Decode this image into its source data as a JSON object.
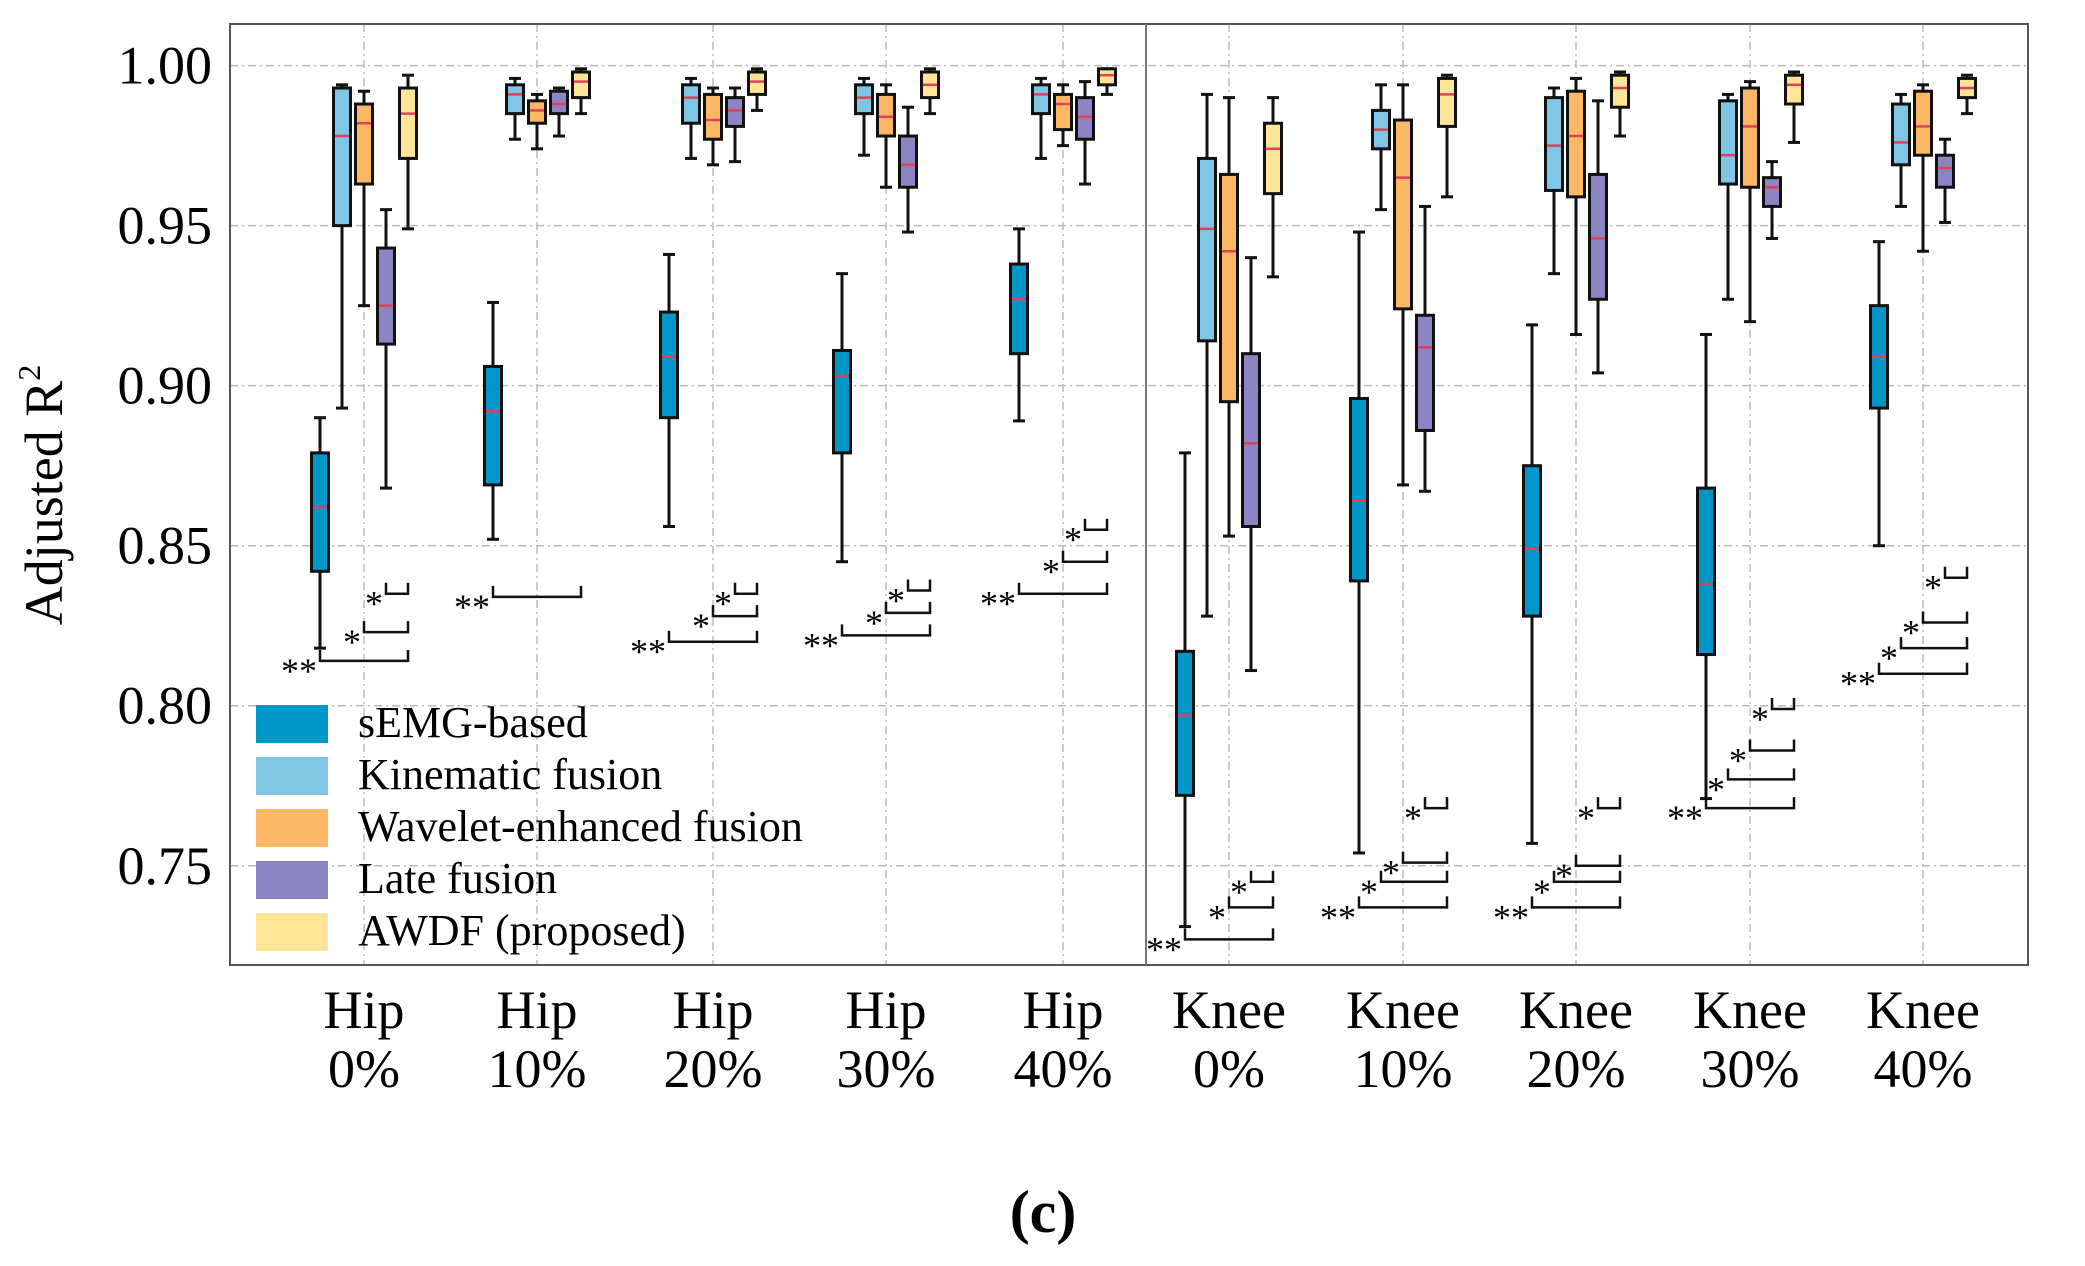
{
  "chart_data": {
    "type": "box",
    "title": "",
    "ylabel": "Adjusted R",
    "ylabel_superscript": "2",
    "ylim": [
      0.719,
      1.013
    ],
    "yticks": [
      "1.00",
      "0.95",
      "0.90",
      "0.85",
      "0.80",
      "0.75"
    ],
    "ytick_values": [
      1.0,
      0.95,
      0.9,
      0.85,
      0.8,
      0.75
    ],
    "grid": true,
    "legend_position": "bottom-left",
    "caption": "(c)",
    "series": [
      {
        "name": "sEMG-based",
        "color": "#0096c8"
      },
      {
        "name": "Kinematic fusion",
        "color": "#7fc6e4"
      },
      {
        "name": "Wavelet-enhanced fusion",
        "color": "#fdb865"
      },
      {
        "name": "Late fusion",
        "color": "#8c85c4"
      },
      {
        "name": "AWDF (proposed)",
        "color": "#fee497"
      }
    ],
    "median_color": "#e0405a",
    "categories": [
      {
        "line1": "Hip",
        "line2": "0%"
      },
      {
        "line1": "Hip",
        "line2": "10%"
      },
      {
        "line1": "Hip",
        "line2": "20%"
      },
      {
        "line1": "Hip",
        "line2": "30%"
      },
      {
        "line1": "Hip",
        "line2": "40%"
      },
      {
        "line1": "Knee",
        "line2": "0%"
      },
      {
        "line1": "Knee",
        "line2": "10%"
      },
      {
        "line1": "Knee",
        "line2": "20%"
      },
      {
        "line1": "Knee",
        "line2": "30%"
      },
      {
        "line1": "Knee",
        "line2": "40%"
      }
    ],
    "boxes_note": "each entry: [min, q1, median, q3, max] per series in order",
    "boxes": [
      [
        [
          0.818,
          0.842,
          0.862,
          0.879,
          0.89
        ],
        [
          0.893,
          0.95,
          0.978,
          0.993,
          0.994
        ],
        [
          0.925,
          0.963,
          0.982,
          0.988,
          0.992
        ],
        [
          0.868,
          0.913,
          0.925,
          0.943,
          0.955
        ],
        [
          0.949,
          0.971,
          0.985,
          0.993,
          0.997
        ]
      ],
      [
        [
          0.852,
          0.869,
          0.892,
          0.906,
          0.926
        ],
        [
          0.977,
          0.985,
          0.991,
          0.994,
          0.996
        ],
        [
          0.974,
          0.982,
          0.986,
          0.989,
          0.991
        ],
        [
          0.978,
          0.985,
          0.988,
          0.992,
          0.993
        ],
        [
          0.985,
          0.99,
          0.995,
          0.998,
          0.999
        ]
      ],
      [
        [
          0.856,
          0.89,
          0.909,
          0.923,
          0.941
        ],
        [
          0.971,
          0.982,
          0.99,
          0.994,
          0.996
        ],
        [
          0.969,
          0.977,
          0.983,
          0.991,
          0.993
        ],
        [
          0.97,
          0.981,
          0.986,
          0.99,
          0.993
        ],
        [
          0.986,
          0.991,
          0.995,
          0.998,
          0.999
        ]
      ],
      [
        [
          0.845,
          0.879,
          0.903,
          0.911,
          0.935
        ],
        [
          0.972,
          0.985,
          0.99,
          0.994,
          0.996
        ],
        [
          0.962,
          0.978,
          0.984,
          0.991,
          0.994
        ],
        [
          0.948,
          0.962,
          0.969,
          0.978,
          0.987
        ],
        [
          0.985,
          0.99,
          0.994,
          0.998,
          0.999
        ]
      ],
      [
        [
          0.889,
          0.91,
          0.927,
          0.938,
          0.949
        ],
        [
          0.971,
          0.985,
          0.991,
          0.994,
          0.996
        ],
        [
          0.975,
          0.98,
          0.988,
          0.991,
          0.994
        ],
        [
          0.963,
          0.977,
          0.984,
          0.99,
          0.995
        ],
        [
          0.991,
          0.994,
          0.997,
          0.999,
          0.999
        ]
      ],
      [
        [
          0.731,
          0.772,
          0.797,
          0.817,
          0.879
        ],
        [
          0.828,
          0.914,
          0.949,
          0.971,
          0.991
        ],
        [
          0.853,
          0.895,
          0.942,
          0.966,
          0.99
        ],
        [
          0.811,
          0.856,
          0.882,
          0.91,
          0.94
        ],
        [
          0.934,
          0.96,
          0.974,
          0.982,
          0.99
        ]
      ],
      [
        [
          0.754,
          0.839,
          0.864,
          0.896,
          0.948
        ],
        [
          0.955,
          0.974,
          0.98,
          0.986,
          0.994
        ],
        [
          0.869,
          0.924,
          0.965,
          0.983,
          0.994
        ],
        [
          0.867,
          0.886,
          0.912,
          0.922,
          0.956
        ],
        [
          0.959,
          0.981,
          0.991,
          0.996,
          0.997
        ]
      ],
      [
        [
          0.757,
          0.828,
          0.849,
          0.875,
          0.919
        ],
        [
          0.935,
          0.961,
          0.975,
          0.99,
          0.993
        ],
        [
          0.916,
          0.959,
          0.978,
          0.992,
          0.996
        ],
        [
          0.904,
          0.927,
          0.946,
          0.966,
          0.989
        ],
        [
          0.978,
          0.987,
          0.993,
          0.997,
          0.998
        ]
      ],
      [
        [
          0.771,
          0.816,
          0.838,
          0.868,
          0.916
        ],
        [
          0.927,
          0.963,
          0.972,
          0.989,
          0.991
        ],
        [
          0.92,
          0.962,
          0.981,
          0.993,
          0.995
        ],
        [
          0.946,
          0.956,
          0.962,
          0.965,
          0.97
        ],
        [
          0.976,
          0.988,
          0.994,
          0.997,
          0.998
        ]
      ],
      [
        [
          0.85,
          0.893,
          0.909,
          0.925,
          0.945
        ],
        [
          0.956,
          0.969,
          0.976,
          0.988,
          0.991
        ],
        [
          0.942,
          0.972,
          0.981,
          0.992,
          0.994
        ],
        [
          0.951,
          0.962,
          0.968,
          0.972,
          0.977
        ],
        [
          0.985,
          0.99,
          0.993,
          0.996,
          0.997
        ]
      ]
    ],
    "significance_note": "each entry: [from_series, to_series, y_value, label]",
    "significance": [
      [
        [
          0,
          4,
          0.814,
          "**"
        ],
        [
          2,
          4,
          0.823,
          "*"
        ],
        [
          3,
          4,
          0.835,
          "*"
        ]
      ],
      [
        [
          0,
          4,
          0.834,
          "**"
        ]
      ],
      [
        [
          0,
          4,
          0.82,
          "**"
        ],
        [
          2,
          4,
          0.828,
          "*"
        ],
        [
          3,
          4,
          0.835,
          "*"
        ]
      ],
      [
        [
          0,
          4,
          0.822,
          "**"
        ],
        [
          2,
          4,
          0.829,
          "*"
        ],
        [
          3,
          4,
          0.836,
          "*"
        ]
      ],
      [
        [
          0,
          4,
          0.835,
          "**"
        ],
        [
          2,
          4,
          0.845,
          "*"
        ],
        [
          3,
          4,
          0.855,
          "*"
        ]
      ],
      [
        [
          0,
          4,
          0.727,
          "**"
        ],
        [
          2,
          4,
          0.737,
          "*"
        ],
        [
          3,
          4,
          0.745,
          "*"
        ]
      ],
      [
        [
          0,
          4,
          0.737,
          "**"
        ],
        [
          1,
          4,
          0.745,
          "*"
        ],
        [
          2,
          4,
          0.751,
          "*"
        ],
        [
          3,
          4,
          0.768,
          "*"
        ]
      ],
      [
        [
          0,
          4,
          0.737,
          "**"
        ],
        [
          1,
          4,
          0.745,
          "*"
        ],
        [
          2,
          4,
          0.75,
          "*"
        ],
        [
          3,
          4,
          0.768,
          "*"
        ]
      ],
      [
        [
          0,
          4,
          0.768,
          "**"
        ],
        [
          1,
          4,
          0.777,
          "*"
        ],
        [
          2,
          4,
          0.786,
          "*"
        ],
        [
          3,
          4,
          0.799,
          "*"
        ]
      ],
      [
        [
          0,
          4,
          0.81,
          "**"
        ],
        [
          1,
          4,
          0.818,
          "*"
        ],
        [
          2,
          4,
          0.826,
          "*"
        ],
        [
          3,
          4,
          0.84,
          "*"
        ]
      ]
    ]
  }
}
